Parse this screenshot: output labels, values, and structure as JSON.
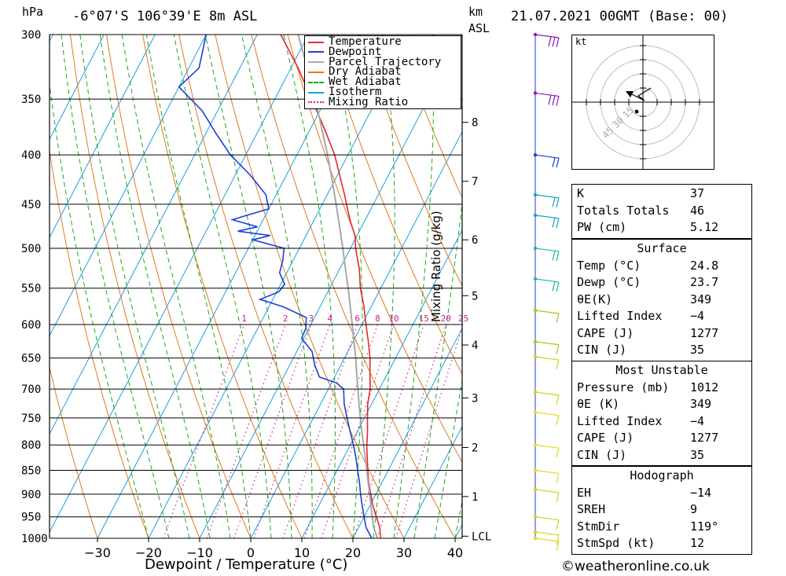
{
  "header": {
    "location": "-6°07'S 106°39'E 8m ASL",
    "datetime": "21.07.2021 00GMT (Base: 00)",
    "pressure_unit": "hPa",
    "height_unit_km": "km",
    "height_unit_asl": "ASL"
  },
  "chart_data": {
    "type": "line",
    "subtype": "skew-t log-p",
    "xlabel": "Dewpoint / Temperature (°C)",
    "ylabel_left": "hPa",
    "ylabel_right": "Mixing Ratio (g/kg)",
    "pressure_levels": [
      300,
      350,
      400,
      450,
      500,
      550,
      600,
      650,
      700,
      750,
      800,
      850,
      900,
      950,
      1000
    ],
    "temperature_ticks": [
      -30,
      -20,
      -10,
      0,
      10,
      20,
      30,
      40
    ],
    "xlim": [
      -40,
      40
    ],
    "ylim": [
      1000,
      300
    ],
    "height_km_ticks": [
      {
        "label": "8",
        "pressure": 370
      },
      {
        "label": "7",
        "pressure": 426
      },
      {
        "label": "6",
        "pressure": 490
      },
      {
        "label": "5",
        "pressure": 560
      },
      {
        "label": "4",
        "pressure": 630
      },
      {
        "label": "3",
        "pressure": 715
      },
      {
        "label": "2",
        "pressure": 805
      },
      {
        "label": "1",
        "pressure": 905
      },
      {
        "label": "LCL",
        "pressure": 995
      }
    ],
    "mixing_ratio_labels": [
      "1",
      "2",
      "3",
      "4",
      "6",
      "8",
      "10",
      "15",
      "20",
      "25"
    ],
    "legend": {
      "placement": "top-right",
      "entries": [
        {
          "name": "Temperature",
          "color": "#e8262a",
          "style": "solid"
        },
        {
          "name": "Dewpoint",
          "color": "#1c3fd8",
          "style": "solid"
        },
        {
          "name": "Parcel Trajectory",
          "color": "#a8a8a8",
          "style": "solid"
        },
        {
          "name": "Dry Adiabat",
          "color": "#e07a1c",
          "style": "solid"
        },
        {
          "name": "Wet Adiabat",
          "color": "#1ea81e",
          "style": "dashed"
        },
        {
          "name": "Isotherm",
          "color": "#1aa0e0",
          "style": "solid"
        },
        {
          "name": "Mixing Ratio",
          "color": "#cc2288",
          "style": "dotted"
        }
      ]
    },
    "series": [
      {
        "name": "Temperature",
        "points": [
          [
            1000,
            25.4
          ],
          [
            975,
            24.2
          ],
          [
            950,
            22.4
          ],
          [
            925,
            20.6
          ],
          [
            900,
            19.0
          ],
          [
            875,
            17.4
          ],
          [
            850,
            16.0
          ],
          [
            825,
            14.6
          ],
          [
            800,
            13.2
          ],
          [
            775,
            12.0
          ],
          [
            750,
            10.6
          ],
          [
            725,
            9.2
          ],
          [
            700,
            8.2
          ],
          [
            675,
            6.6
          ],
          [
            650,
            5.0
          ],
          [
            625,
            3.0
          ],
          [
            600,
            0.8
          ],
          [
            575,
            -1.4
          ],
          [
            550,
            -4.0
          ],
          [
            525,
            -6.2
          ],
          [
            500,
            -9.0
          ],
          [
            485,
            -10.4
          ],
          [
            470,
            -12.6
          ],
          [
            455,
            -14.6
          ],
          [
            440,
            -16.6
          ],
          [
            425,
            -18.8
          ],
          [
            400,
            -22.6
          ],
          [
            375,
            -27.4
          ],
          [
            350,
            -32.8
          ],
          [
            325,
            -38.6
          ],
          [
            300,
            -45.4
          ]
        ]
      },
      {
        "name": "Dewpoint",
        "points": [
          [
            1000,
            23.7
          ],
          [
            975,
            21.5
          ],
          [
            950,
            20.0
          ],
          [
            925,
            18.5
          ],
          [
            900,
            17.0
          ],
          [
            875,
            15.6
          ],
          [
            850,
            14.0
          ],
          [
            825,
            12.4
          ],
          [
            800,
            10.6
          ],
          [
            775,
            8.6
          ],
          [
            750,
            6.6
          ],
          [
            725,
            4.6
          ],
          [
            700,
            3.0
          ],
          [
            690,
            1.0
          ],
          [
            680,
            -3.0
          ],
          [
            660,
            -5.2
          ],
          [
            640,
            -7.0
          ],
          [
            620,
            -10.4
          ],
          [
            605,
            -10.6
          ],
          [
            590,
            -11.6
          ],
          [
            575,
            -17.2
          ],
          [
            565,
            -22.5
          ],
          [
            555,
            -19.6
          ],
          [
            545,
            -19.2
          ],
          [
            530,
            -21.4
          ],
          [
            515,
            -22.0
          ],
          [
            500,
            -23.0
          ],
          [
            490,
            -30.0
          ],
          [
            485,
            -27.0
          ],
          [
            480,
            -33.8
          ],
          [
            475,
            -30.4
          ],
          [
            467,
            -36.0
          ],
          [
            462,
            -33.6
          ],
          [
            455,
            -30.0
          ],
          [
            440,
            -32.0
          ],
          [
            420,
            -37.0
          ],
          [
            400,
            -43.0
          ],
          [
            380,
            -48.0
          ],
          [
            360,
            -53.0
          ],
          [
            340,
            -60.0
          ],
          [
            325,
            -58.0
          ],
          [
            300,
            -60.0
          ]
        ]
      },
      {
        "name": "Parcel Trajectory",
        "points": [
          [
            1000,
            24.8
          ],
          [
            975,
            23.0
          ],
          [
            950,
            21.6
          ],
          [
            925,
            20.2
          ],
          [
            900,
            18.8
          ],
          [
            875,
            17.3
          ],
          [
            850,
            15.8
          ],
          [
            825,
            14.2
          ],
          [
            800,
            12.6
          ],
          [
            775,
            10.9
          ],
          [
            750,
            9.2
          ],
          [
            725,
            7.5
          ],
          [
            700,
            5.8
          ],
          [
            675,
            4.0
          ],
          [
            650,
            2.2
          ],
          [
            625,
            0.2
          ],
          [
            600,
            -1.9
          ],
          [
            575,
            -4.1
          ],
          [
            550,
            -6.4
          ],
          [
            525,
            -8.9
          ],
          [
            500,
            -11.5
          ],
          [
            475,
            -14.3
          ],
          [
            450,
            -17.3
          ],
          [
            425,
            -20.5
          ],
          [
            400,
            -24.0
          ],
          [
            375,
            -27.9
          ],
          [
            350,
            -32.1
          ],
          [
            325,
            -36.8
          ],
          [
            300,
            -42.0
          ]
        ]
      }
    ],
    "wind_barbs": [
      {
        "pressure": 300,
        "color": "#8a1ab8",
        "barbs": 3
      },
      {
        "pressure": 345,
        "color": "#8a1ab8",
        "barbs": 3
      },
      {
        "pressure": 400,
        "color": "#1c3fd8",
        "barbs": 2
      },
      {
        "pressure": 440,
        "color": "#1aa0c8",
        "barbs": 2
      },
      {
        "pressure": 462,
        "color": "#1aa0c8",
        "barbs": 2
      },
      {
        "pressure": 500,
        "color": "#1ab8a0",
        "barbs": 2
      },
      {
        "pressure": 538,
        "color": "#1ab8a0",
        "barbs": 2
      },
      {
        "pressure": 580,
        "color": "#a8c81a",
        "barbs": 1
      },
      {
        "pressure": 625,
        "color": "#a8c81a",
        "barbs": 1
      },
      {
        "pressure": 648,
        "color": "#c8d81a",
        "barbs": 1
      },
      {
        "pressure": 705,
        "color": "#c8d81a",
        "barbs": 1
      },
      {
        "pressure": 740,
        "color": "#e8d81a",
        "barbs": 1
      },
      {
        "pressure": 800,
        "color": "#e8d81a",
        "barbs": 1
      },
      {
        "pressure": 850,
        "color": "#e8d81a",
        "barbs": 1
      },
      {
        "pressure": 890,
        "color": "#c8d81a",
        "barbs": 1
      },
      {
        "pressure": 950,
        "color": "#c8d81a",
        "barbs": 1
      },
      {
        "pressure": 985,
        "color": "#c8d81a",
        "barbs": 1
      },
      {
        "pressure": 1000,
        "color": "#e8d81a",
        "barbs": 1
      }
    ],
    "hodograph": {
      "unit": "kt",
      "ring_labels": [
        "15",
        "30",
        "45"
      ]
    }
  },
  "indices": {
    "general": [
      {
        "label": "K",
        "value": "37"
      },
      {
        "label": "Totals Totals",
        "value": "46"
      },
      {
        "label": "PW (cm)",
        "value": "5.12"
      }
    ],
    "surface": {
      "title": "Surface",
      "rows": [
        {
          "label": "Temp (°C)",
          "value": "24.8"
        },
        {
          "label": "Dewp (°C)",
          "value": "23.7"
        },
        {
          "label": "θE(K)",
          "value": "349"
        },
        {
          "label": "Lifted Index",
          "value": "-4"
        },
        {
          "label": "CAPE (J)",
          "value": "1277"
        },
        {
          "label": "CIN (J)",
          "value": "35"
        }
      ]
    },
    "most_unstable": {
      "title": "Most Unstable",
      "rows": [
        {
          "label": "Pressure (mb)",
          "value": "1012"
        },
        {
          "label": "θE (K)",
          "value": "349"
        },
        {
          "label": "Lifted Index",
          "value": "-4"
        },
        {
          "label": "CAPE (J)",
          "value": "1277"
        },
        {
          "label": "CIN (J)",
          "value": "35"
        }
      ]
    },
    "hodograph": {
      "title": "Hodograph",
      "rows": [
        {
          "label": "EH",
          "value": "-14"
        },
        {
          "label": "SREH",
          "value": "9"
        },
        {
          "label": "StmDir",
          "value": "119°"
        },
        {
          "label": "StmSpd (kt)",
          "value": "12"
        }
      ]
    }
  },
  "footer": {
    "credit": "©weatheronline.co.uk"
  }
}
